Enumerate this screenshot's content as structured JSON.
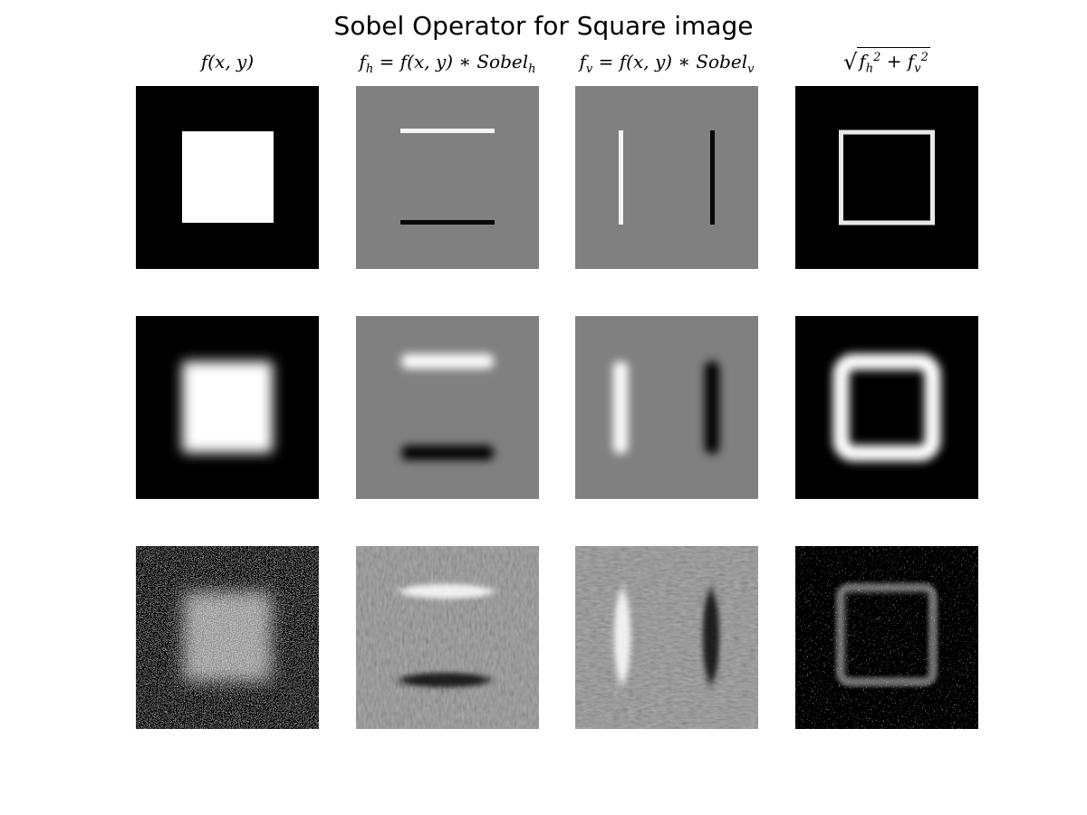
{
  "figure": {
    "title": "Sobel Operator for Square image"
  },
  "columns": [
    {
      "id": "original",
      "header_math": "f(x, y)"
    },
    {
      "id": "horizontal",
      "header_math": "f_h = f(x,y) * Sobel_h"
    },
    {
      "id": "vertical",
      "header_math": "f_v = f(x,y) * Sobel_v"
    },
    {
      "id": "magnitude",
      "header_math": "sqrt(f_h^2 + f_v^2)"
    }
  ],
  "rows": [
    {
      "id": "sharp",
      "description_hidden": false
    },
    {
      "id": "blurred"
    },
    {
      "id": "noisy"
    }
  ],
  "colors": {
    "background": "#ffffff",
    "neutral_gray": "#808080",
    "black": "#000000",
    "white": "#ffffff"
  }
}
